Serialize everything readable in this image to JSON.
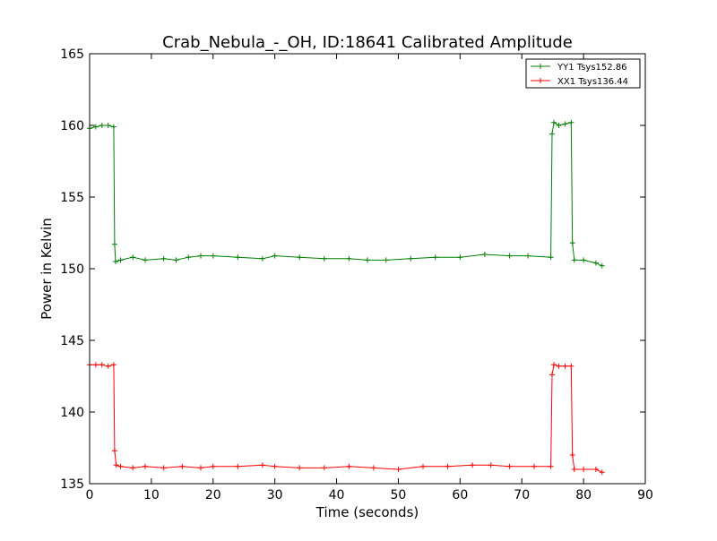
{
  "chart_data": {
    "type": "line",
    "title": "Crab_Nebula_-_OH, ID:18641 Calibrated Amplitude",
    "xlabel": "Time (seconds)",
    "ylabel": "Power in Kelvin",
    "xlim": [
      0,
      90
    ],
    "ylim": [
      135,
      165
    ],
    "xticks": [
      0,
      10,
      20,
      30,
      40,
      50,
      60,
      70,
      80,
      90
    ],
    "yticks": [
      135,
      140,
      145,
      150,
      155,
      160,
      165
    ],
    "grid": false,
    "legend_position": "top-right",
    "marker": "+",
    "series": [
      {
        "name": "YY1 Tsys152.86",
        "color": "#008000",
        "points": [
          [
            0,
            159.8
          ],
          [
            1,
            159.9
          ],
          [
            2,
            160.0
          ],
          [
            3,
            160.0
          ],
          [
            3.9,
            159.9
          ],
          [
            4.05,
            151.7
          ],
          [
            4.2,
            150.5
          ],
          [
            5,
            150.6
          ],
          [
            7,
            150.8
          ],
          [
            9,
            150.6
          ],
          [
            12,
            150.7
          ],
          [
            14,
            150.6
          ],
          [
            16,
            150.8
          ],
          [
            18,
            150.9
          ],
          [
            20,
            150.9
          ],
          [
            24,
            150.8
          ],
          [
            28,
            150.7
          ],
          [
            30,
            150.9
          ],
          [
            34,
            150.8
          ],
          [
            38,
            150.7
          ],
          [
            42,
            150.7
          ],
          [
            45,
            150.6
          ],
          [
            48,
            150.6
          ],
          [
            52,
            150.7
          ],
          [
            56,
            150.8
          ],
          [
            60,
            150.8
          ],
          [
            64,
            151.0
          ],
          [
            68,
            150.9
          ],
          [
            71,
            150.9
          ],
          [
            74.7,
            150.8
          ],
          [
            74.9,
            159.4
          ],
          [
            75.2,
            160.2
          ],
          [
            76,
            160.0
          ],
          [
            77,
            160.1
          ],
          [
            78,
            160.2
          ],
          [
            78.2,
            151.8
          ],
          [
            78.5,
            150.6
          ],
          [
            80,
            150.6
          ],
          [
            82,
            150.4
          ],
          [
            83,
            150.2
          ]
        ]
      },
      {
        "name": "XX1 Tsys136.44",
        "color": "#ff0000",
        "points": [
          [
            0,
            143.3
          ],
          [
            1,
            143.3
          ],
          [
            2,
            143.3
          ],
          [
            3,
            143.2
          ],
          [
            3.9,
            143.3
          ],
          [
            4.05,
            137.3
          ],
          [
            4.3,
            136.3
          ],
          [
            5,
            136.2
          ],
          [
            7,
            136.1
          ],
          [
            9,
            136.2
          ],
          [
            12,
            136.1
          ],
          [
            15,
            136.2
          ],
          [
            18,
            136.1
          ],
          [
            20,
            136.2
          ],
          [
            24,
            136.2
          ],
          [
            28,
            136.3
          ],
          [
            30,
            136.2
          ],
          [
            34,
            136.1
          ],
          [
            38,
            136.1
          ],
          [
            42,
            136.2
          ],
          [
            46,
            136.1
          ],
          [
            50,
            136.0
          ],
          [
            54,
            136.2
          ],
          [
            58,
            136.2
          ],
          [
            62,
            136.3
          ],
          [
            65,
            136.3
          ],
          [
            68,
            136.2
          ],
          [
            72,
            136.2
          ],
          [
            74.7,
            136.2
          ],
          [
            74.9,
            142.6
          ],
          [
            75.2,
            143.3
          ],
          [
            76,
            143.2
          ],
          [
            77,
            143.2
          ],
          [
            78,
            143.2
          ],
          [
            78.2,
            137.0
          ],
          [
            78.5,
            136.0
          ],
          [
            80,
            136.0
          ],
          [
            82,
            136.0
          ],
          [
            83,
            135.8
          ]
        ]
      }
    ]
  }
}
